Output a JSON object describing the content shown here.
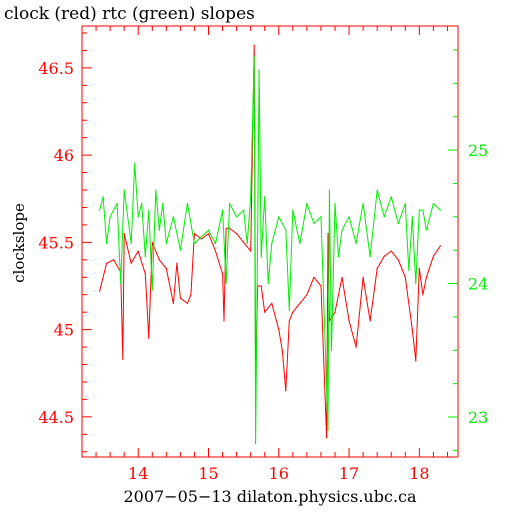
{
  "chart_data": {
    "type": "line",
    "title": "clock (red) rtc (green) slopes",
    "xlabel": "2007−05−13 dilaton.physics.ubc.ca",
    "ylabel": "clockslope",
    "xlim": [
      13.2,
      18.55
    ],
    "ylim_left": [
      44.27,
      46.74
    ],
    "ylim_right": [
      22.7,
      25.93
    ],
    "x_ticks": [
      14,
      15,
      16,
      17,
      18
    ],
    "y_ticks_left": [
      44.5,
      45,
      45.5,
      46,
      46.5
    ],
    "y_ticks_right": [
      23,
      24,
      25
    ],
    "colors": {
      "clock": "#ff0000",
      "rtc": "#00ee00",
      "axes": "#ff0000",
      "right_axis": "#00ee00"
    },
    "series": [
      {
        "name": "clock",
        "axis": "left",
        "color": "#ff0000",
        "x": [
          13.45,
          13.55,
          13.65,
          13.75,
          13.78,
          13.8,
          13.9,
          14.0,
          14.1,
          14.15,
          14.2,
          14.3,
          14.4,
          14.5,
          14.55,
          14.6,
          14.7,
          14.75,
          14.8,
          14.9,
          15.0,
          15.1,
          15.2,
          15.22,
          15.25,
          15.3,
          15.4,
          15.5,
          15.6,
          15.65,
          15.67,
          15.7,
          15.75,
          15.8,
          15.9,
          16.0,
          16.05,
          16.1,
          16.15,
          16.2,
          16.3,
          16.4,
          16.5,
          16.6,
          16.68,
          16.7,
          16.72,
          16.8,
          16.9,
          17.0,
          17.1,
          17.2,
          17.3,
          17.4,
          17.5,
          17.6,
          17.7,
          17.8,
          17.9,
          17.95,
          18.0,
          18.05,
          18.1,
          18.2,
          18.3
        ],
        "values": [
          45.22,
          45.38,
          45.4,
          45.33,
          44.83,
          45.55,
          45.38,
          45.45,
          45.32,
          44.95,
          45.5,
          45.4,
          45.35,
          45.15,
          45.38,
          45.18,
          45.15,
          45.2,
          45.55,
          45.52,
          45.55,
          45.45,
          45.32,
          45.05,
          45.58,
          45.58,
          45.55,
          45.5,
          45.45,
          46.63,
          44.75,
          45.25,
          45.25,
          45.1,
          45.15,
          45.0,
          44.88,
          44.65,
          45.05,
          45.1,
          45.15,
          45.2,
          45.3,
          45.25,
          44.38,
          45.55,
          45.05,
          45.1,
          45.3,
          45.05,
          44.9,
          45.3,
          45.05,
          45.35,
          45.42,
          45.45,
          45.4,
          45.3,
          45.0,
          44.82,
          45.35,
          45.2,
          45.3,
          45.42,
          45.48
        ]
      },
      {
        "name": "rtc",
        "axis": "right",
        "color": "#00ee00",
        "x": [
          13.45,
          13.5,
          13.55,
          13.6,
          13.7,
          13.75,
          13.8,
          13.9,
          13.95,
          14.0,
          14.05,
          14.1,
          14.15,
          14.2,
          14.25,
          14.3,
          14.35,
          14.4,
          14.5,
          14.6,
          14.7,
          14.8,
          14.9,
          15.0,
          15.1,
          15.2,
          15.25,
          15.3,
          15.4,
          15.5,
          15.55,
          15.6,
          15.65,
          15.67,
          15.7,
          15.72,
          15.75,
          15.8,
          15.85,
          15.9,
          16.0,
          16.1,
          16.15,
          16.2,
          16.3,
          16.4,
          16.5,
          16.6,
          16.7,
          16.72,
          16.75,
          16.8,
          16.85,
          16.9,
          17.0,
          17.1,
          17.2,
          17.3,
          17.4,
          17.5,
          17.6,
          17.7,
          17.8,
          17.85,
          17.9,
          17.95,
          18.0,
          18.05,
          18.1,
          18.2,
          18.3
        ],
        "values": [
          24.55,
          24.65,
          24.3,
          24.5,
          24.6,
          24.0,
          24.7,
          24.3,
          24.9,
          24.5,
          24.6,
          24.2,
          24.55,
          23.95,
          24.7,
          24.4,
          24.6,
          24.3,
          24.5,
          24.25,
          24.6,
          24.3,
          24.35,
          24.4,
          24.3,
          24.55,
          24.0,
          24.6,
          24.5,
          24.55,
          24.3,
          24.65,
          25.7,
          22.8,
          24.4,
          25.6,
          24.2,
          24.65,
          24.0,
          24.3,
          24.5,
          24.4,
          23.8,
          24.55,
          24.3,
          24.6,
          24.45,
          24.5,
          22.9,
          24.7,
          23.5,
          24.6,
          24.2,
          24.4,
          24.5,
          24.3,
          24.6,
          24.2,
          24.7,
          24.5,
          24.65,
          24.45,
          24.6,
          24.1,
          24.5,
          24.0,
          24.55,
          24.55,
          24.4,
          24.6,
          24.55
        ]
      }
    ]
  }
}
